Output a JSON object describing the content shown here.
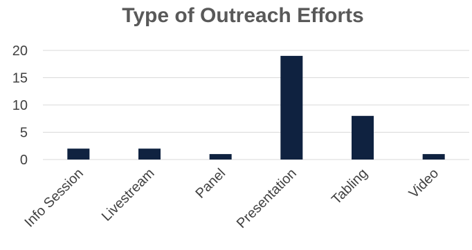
{
  "chart_data": {
    "type": "bar",
    "title": "Type of Outreach Efforts",
    "xlabel": "",
    "ylabel": "",
    "categories": [
      "Info Session",
      "Livestream",
      "Panel",
      "Presentation",
      "Tabling",
      "Video"
    ],
    "values": [
      2,
      2,
      1,
      19,
      8,
      1
    ],
    "ylim": [
      0,
      20
    ],
    "yticks": [
      0,
      5,
      10,
      15,
      20
    ],
    "grid": true,
    "legend": "none",
    "bar_color": "#0f2240",
    "grid_color": "#d9d9d9",
    "text_color": "#404040",
    "title_color": "#595959"
  }
}
